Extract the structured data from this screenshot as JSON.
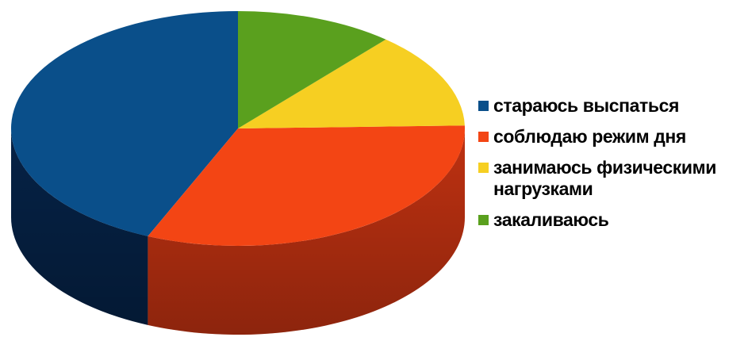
{
  "chart_data": {
    "type": "pie",
    "title": "",
    "categories": [
      "стараюсь выспаться",
      "соблюдаю режим дня",
      "занимаюсь физическими нагрузками",
      "закаливаюсь"
    ],
    "values": [
      43.5,
      31.9,
      13.3,
      11.3
    ],
    "unit": "%",
    "colors": [
      "#0a4f8a",
      "#f34514",
      "#f6cf22",
      "#5aa01e"
    ],
    "side_colors": [
      "#06244a",
      "#c93412",
      "#c9a01a",
      "#3e7715"
    ],
    "legend": "right",
    "style": "3d"
  }
}
